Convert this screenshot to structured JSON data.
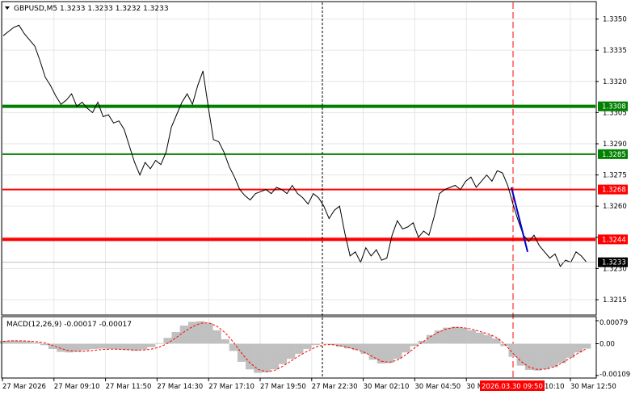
{
  "chart_data": [
    {
      "type": "line",
      "title": "GBPUSD,M5  1.3233 1.3233 1.3232 1.3233",
      "symbol": "GBPUSD,M5",
      "ohlc": [
        "1.3233",
        "1.3233",
        "1.3232",
        "1.3233"
      ],
      "ylim": [
        1.3208,
        1.3358
      ],
      "y_ticks": [
        "1.3350",
        "1.3335",
        "1.3320",
        "1.3305",
        "1.3290",
        "1.3275",
        "1.3260",
        "1.3245",
        "1.3230",
        "1.3215"
      ],
      "x_ticks": [
        "27 Mar 2026",
        "27 Mar 09:10",
        "27 Mar 11:50",
        "27 Mar 14:30",
        "27 Mar 17:10",
        "27 Mar 19:50",
        "27 Mar 22:30",
        "30 Mar 02:10",
        "30 Mar 04:50",
        "30 M",
        "2026.03.30 09:50",
        "10:10",
        "30 Mar 12:50"
      ],
      "grid": true,
      "colors": {
        "price": "#000000",
        "projection": "#0000cc",
        "green_line": "#008000",
        "red_line": "#ff0000",
        "current_price": "#000000"
      },
      "horizontal_levels": [
        {
          "label": "1.3308",
          "value": 1.3308,
          "color": "#008000"
        },
        {
          "label": "1.3285",
          "value": 1.3285,
          "color": "#008000"
        },
        {
          "label": "1.3268",
          "value": 1.3268,
          "color": "#ff0000"
        },
        {
          "label": "1.3244",
          "value": 1.3244,
          "color": "#ff0000"
        }
      ],
      "current_price_label": "1.3233",
      "series": [
        {
          "values": [
            1.3342,
            1.3344,
            1.3346,
            1.3347,
            1.3343,
            1.334,
            1.3337,
            1.333,
            1.3322,
            1.3318,
            1.3313,
            1.3309,
            1.3311,
            1.3314,
            1.3308,
            1.331,
            1.3307,
            1.3305,
            1.331,
            1.3303,
            1.3304,
            1.33,
            1.3301,
            1.3297,
            1.3289,
            1.3281,
            1.3275,
            1.3281,
            1.3278,
            1.3282,
            1.328,
            1.3286,
            1.3298,
            1.3304,
            1.331,
            1.3314,
            1.3309,
            1.3318,
            1.3325,
            1.3308,
            1.3292,
            1.3291,
            1.3286,
            1.3279,
            1.3274,
            1.3268,
            1.3265,
            1.3263,
            1.3266,
            1.3267,
            1.3268,
            1.3266,
            1.3269,
            1.3268,
            1.3266,
            1.327,
            1.3266,
            1.3264,
            1.3261,
            1.3266,
            1.3264,
            1.326,
            1.3254,
            1.3258,
            1.326,
            1.3247,
            1.3236,
            1.3238,
            1.3233,
            1.324,
            1.3236,
            1.3239,
            1.3234,
            1.3235,
            1.3246,
            1.3253,
            1.3249,
            1.325,
            1.3252,
            1.3245,
            1.3248,
            1.3246,
            1.3255,
            1.3266,
            1.3268,
            1.3269,
            1.327,
            1.3268,
            1.3272,
            1.3274,
            1.3269,
            1.3272,
            1.3275,
            1.3272,
            1.3277,
            1.3276,
            1.327,
            1.3261,
            1.3253,
            1.3246,
            1.3243,
            1.3246,
            1.3241,
            1.3238,
            1.3235,
            1.3237,
            1.3231,
            1.3234,
            1.3233,
            1.3238,
            1.3236,
            1.3233
          ]
        },
        {
          "name": "",
          "projection_from": 1.3269,
          "projection_to": 1.3238
        }
      ]
    },
    {
      "type": "bar",
      "title": "MACD(12,26,9) -0.00017 -0.00017",
      "ylim": [
        -0.00115,
        0.0009
      ],
      "y_ticks": [
        "0.00079",
        "0.00",
        "-0.00109"
      ],
      "colors": {
        "histogram": "#c0c0c0",
        "signal": "#ff0000"
      },
      "series": [
        {
          "name": "histogram",
          "values": [
            0.0001,
            0.00011,
            0.0001,
            8e-05,
            4e-05,
            -5e-05,
            -0.00018,
            -0.00028,
            -0.0003,
            -0.00027,
            -0.00022,
            -0.00018,
            -0.00017,
            -0.00018,
            -0.0002,
            -0.00022,
            -0.00024,
            -0.0002,
            -0.00012,
            2e-05,
            0.0002,
            0.0004,
            0.00062,
            0.00075,
            0.00077,
            0.0007,
            0.00046,
            0.00015,
            -0.00025,
            -0.00062,
            -0.00088,
            -0.001,
            -0.00098,
            -0.00088,
            -0.0007,
            -0.00052,
            -0.00035,
            -0.00018,
            -5e-05,
            1e-05,
            -4e-05,
            -0.0001,
            -0.00016,
            -0.00022,
            -0.00035,
            -0.00055,
            -0.00068,
            -0.00066,
            -0.00052,
            -0.0003,
            -8e-05,
            0.0001,
            0.0003,
            0.00045,
            0.00055,
            0.00058,
            0.00054,
            0.00046,
            0.00038,
            0.0003,
            0.00018,
            -8e-05,
            -0.00045,
            -0.00075,
            -0.0009,
            -0.00092,
            -0.00088,
            -0.0008,
            -0.00066,
            -0.00048,
            -0.0003,
            -0.00017
          ]
        },
        {
          "name": "signal",
          "values": [
            8e-05,
            0.0001,
            0.0001,
            9e-05,
            7e-05,
            3e-05,
            -6e-05,
            -0.00016,
            -0.00024,
            -0.00027,
            -0.00026,
            -0.00023,
            -0.0002,
            -0.00019,
            -0.00019,
            -0.0002,
            -0.00022,
            -0.00022,
            -0.00019,
            -0.00012,
            1e-05,
            0.0002,
            0.0004,
            0.00058,
            0.0007,
            0.00072,
            0.0006,
            0.00038,
            6e-05,
            -0.00032,
            -0.00065,
            -0.00088,
            -0.00096,
            -0.00092,
            -0.00078,
            -0.0006,
            -0.00042,
            -0.00026,
            -0.00012,
            -4e-05,
            -3e-05,
            -7e-05,
            -0.00013,
            -0.0002,
            -0.0003,
            -0.00045,
            -0.0006,
            -0.00064,
            -0.00056,
            -0.00038,
            -0.00016,
            5e-05,
            0.00024,
            0.0004,
            0.00051,
            0.00056,
            0.00055,
            0.0005,
            0.00042,
            0.00034,
            0.00022,
            0.0,
            -0.00032,
            -0.0006,
            -0.0008,
            -0.00088,
            -0.00087,
            -0.0008,
            -0.00066,
            -0.0005,
            -0.00032,
            -0.00017
          ]
        }
      ]
    }
  ]
}
